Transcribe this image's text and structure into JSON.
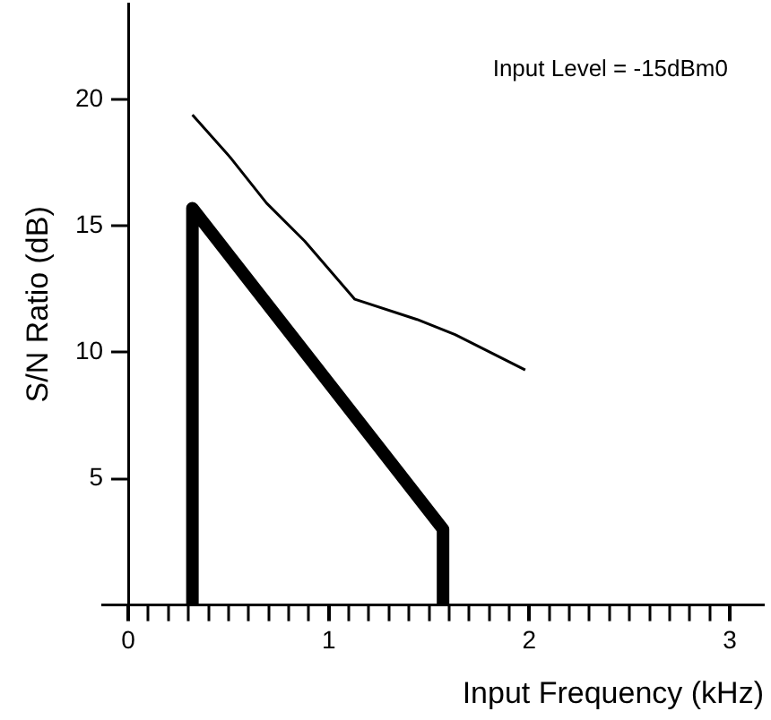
{
  "chart_data": {
    "type": "line",
    "xlabel": "Input Frequency (kHz)",
    "ylabel": "S/N Ratio (dB)",
    "annotations": [
      "Input Level = -15dBm0"
    ],
    "xlim": [
      -0.13,
      3.17
    ],
    "ylim": [
      0,
      23.8
    ],
    "xticks": [
      0,
      {
        "value": 0.1,
        "label": null
      },
      {
        "value": 0.2,
        "label": null
      },
      {
        "value": 0.3,
        "label": null
      },
      {
        "value": 0.4,
        "label": null
      },
      {
        "value": 0.5,
        "label": null
      },
      {
        "value": 0.6,
        "label": null
      },
      {
        "value": 0.7,
        "label": null
      },
      {
        "value": 0.8,
        "label": null
      },
      {
        "value": 0.9,
        "label": null
      },
      1,
      {
        "value": 1.1,
        "label": null
      },
      {
        "value": 1.2,
        "label": null
      },
      {
        "value": 1.3,
        "label": null
      },
      {
        "value": 1.4,
        "label": null
      },
      {
        "value": 1.5,
        "label": null
      },
      {
        "value": 1.6,
        "label": null
      },
      {
        "value": 1.7,
        "label": null
      },
      {
        "value": 1.8,
        "label": null
      },
      {
        "value": 1.9,
        "label": null
      },
      2,
      {
        "value": 2.1,
        "label": null
      },
      {
        "value": 2.2,
        "label": null
      },
      {
        "value": 2.3,
        "label": null
      },
      {
        "value": 2.4,
        "label": null
      },
      {
        "value": 2.5,
        "label": null
      },
      {
        "value": 2.6,
        "label": null
      },
      {
        "value": 2.7,
        "label": null
      },
      {
        "value": 2.8,
        "label": null
      },
      {
        "value": 2.9,
        "label": null
      },
      3
    ],
    "yticks": [
      5,
      10,
      15,
      20
    ],
    "grid": false,
    "legend": false,
    "marker": "none",
    "line_style": "solid",
    "series": [
      {
        "color": "#000000",
        "x": [
          0.32,
          0.51,
          0.69,
          0.88,
          1.13,
          1.44,
          1.63,
          1.98
        ],
        "values": [
          19.4,
          17.7,
          15.9,
          14.4,
          12.1,
          11.3,
          10.7,
          9.3
        ]
      },
      {
        "color": "#000000",
        "x": [
          0.32,
          0.32,
          1.57,
          1.57
        ],
        "values": [
          0,
          15.7,
          3,
          0
        ]
      }
    ]
  }
}
